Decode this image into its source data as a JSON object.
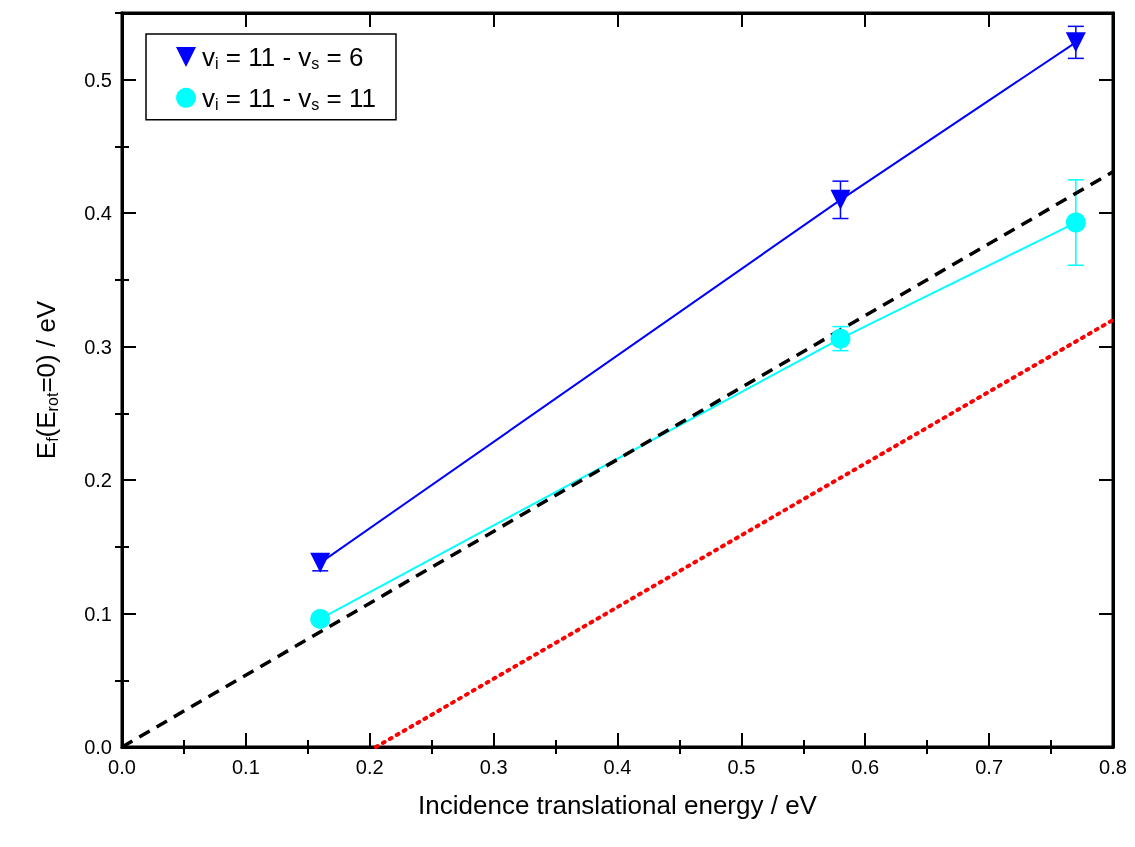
{
  "chart_data": {
    "type": "line",
    "xlabel": "Incidence translational energy / eV",
    "ylabel": "E$_{f}$(E$_{rot}$=0) / eV",
    "xlim": [
      0,
      0.8
    ],
    "ylim": [
      0,
      0.55
    ],
    "xticks": [
      {
        "value": 0,
        "label": "0.0"
      },
      0.1,
      0.2,
      0.3,
      0.4,
      0.5,
      0.6,
      0.7,
      0.8
    ],
    "yticks": [
      {
        "value": 0,
        "label": "0.0"
      },
      0.1,
      0.2,
      0.3,
      0.4,
      0.5
    ],
    "grid": false,
    "legend": "top left",
    "series": [
      {
        "name": "v$_{i}$ = 11 - v$_{s}$ = 6",
        "color": "#0000ff",
        "marker": "triangle",
        "line_style": "solid",
        "x": [
          0.16,
          0.58,
          0.77
        ],
        "values": [
          0.138,
          0.41,
          0.528
        ],
        "errors": [
          0.006,
          0.014,
          0.012
        ]
      },
      {
        "name": "v$_{i}$ = 11 - v$_{s}$ = 11",
        "color": "#00ffff",
        "marker": "circle",
        "line_style": "solid",
        "x": [
          0.16,
          0.58,
          0.77
        ],
        "values": [
          0.096,
          0.306,
          0.393
        ],
        "errors": [
          null,
          0.009,
          0.032
        ]
      },
      {
        "color": "#000000",
        "marker": "none",
        "line_style": "dashed",
        "x": [
          0,
          0.8
        ],
        "values": [
          0,
          0.431
        ]
      },
      {
        "color": "#ff0000",
        "marker": "none",
        "line_style": "dotted",
        "x": [
          0.205,
          0.8
        ],
        "values": [
          0,
          0.32
        ]
      }
    ]
  }
}
